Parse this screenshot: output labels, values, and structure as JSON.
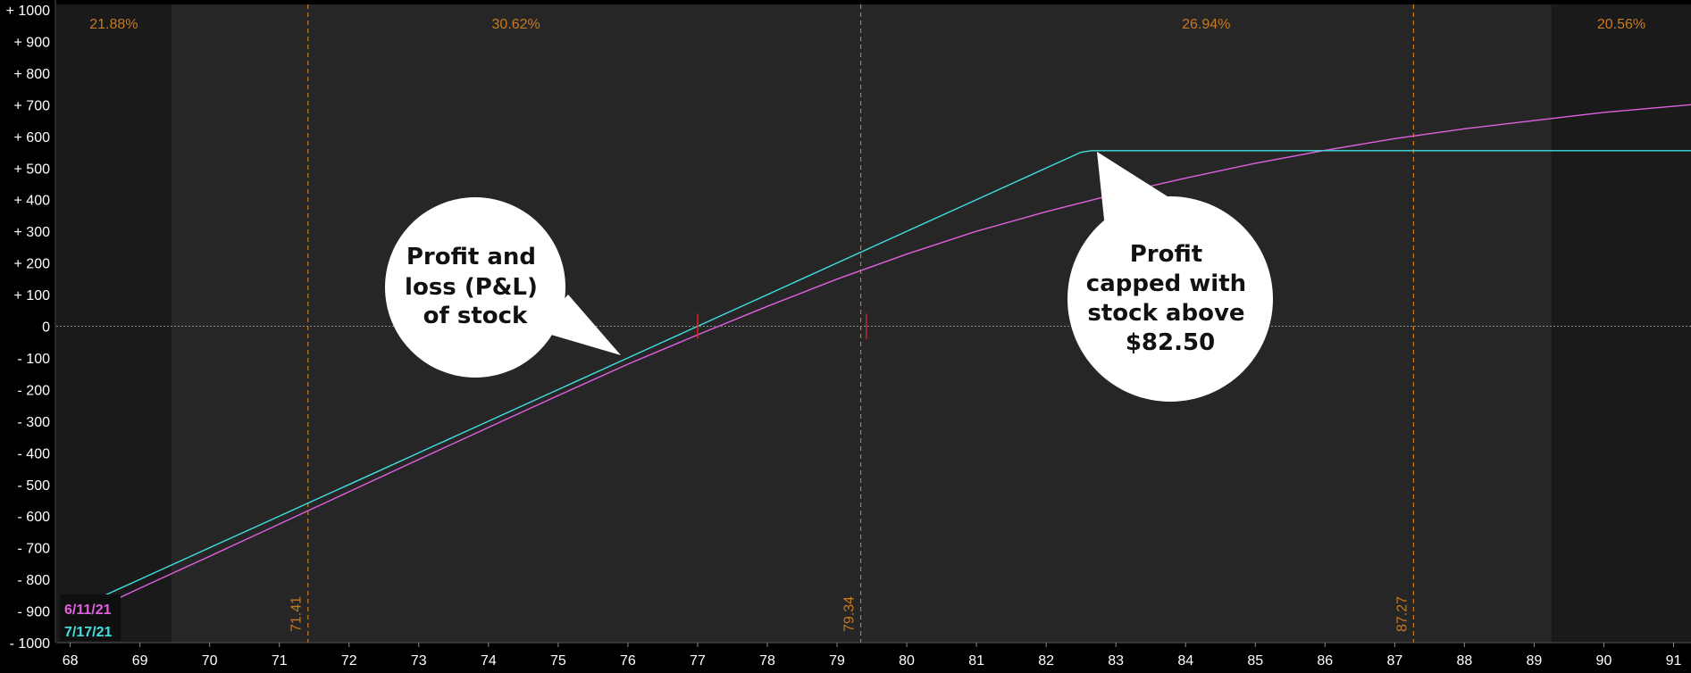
{
  "chart_data": {
    "type": "line",
    "x_ticks": [
      68,
      69,
      70,
      71,
      72,
      73,
      74,
      75,
      76,
      77,
      78,
      79,
      80,
      81,
      82,
      83,
      84,
      85,
      86,
      87,
      88,
      89,
      90,
      91
    ],
    "y_ticks": [
      {
        "value": 1000,
        "label": "+ 1000"
      },
      {
        "value": 900,
        "label": "+ 900"
      },
      {
        "value": 800,
        "label": "+ 800"
      },
      {
        "value": 700,
        "label": "+ 700"
      },
      {
        "value": 600,
        "label": "+ 600"
      },
      {
        "value": 500,
        "label": "+ 500"
      },
      {
        "value": 400,
        "label": "+ 400"
      },
      {
        "value": 300,
        "label": "+ 300"
      },
      {
        "value": 200,
        "label": "+ 200"
      },
      {
        "value": 100,
        "label": "+ 100"
      },
      {
        "value": 0,
        "label": "0"
      },
      {
        "value": -100,
        "label": "- 100"
      },
      {
        "value": -200,
        "label": "- 200"
      },
      {
        "value": -300,
        "label": "- 300"
      },
      {
        "value": -400,
        "label": "- 400"
      },
      {
        "value": -500,
        "label": "- 500"
      },
      {
        "value": -600,
        "label": "- 600"
      },
      {
        "value": -700,
        "label": "- 700"
      },
      {
        "value": -800,
        "label": "- 800"
      },
      {
        "value": -900,
        "label": "- 900"
      },
      {
        "value": -1000,
        "label": "- 1000"
      }
    ],
    "xlim": [
      67.8,
      91.25
    ],
    "ylim": [
      -1000,
      1000
    ],
    "zero_line": true,
    "probability_zones": [
      {
        "from": 67.8,
        "to": 69.45,
        "label": "21.88%"
      },
      {
        "from": 69.45,
        "to": 79.34,
        "label": "30.62%"
      },
      {
        "from": 79.34,
        "to": 89.25,
        "label": "26.94%"
      },
      {
        "from": 89.25,
        "to": 91.25,
        "label": "20.56%"
      }
    ],
    "sigma_lines": [
      {
        "x": 71.41,
        "label": "71.41"
      },
      {
        "x": 79.34,
        "label": "79.34"
      },
      {
        "x": 87.27,
        "label": "87.27"
      }
    ],
    "breakeven_markers": [
      77.0,
      79.42
    ],
    "series": [
      {
        "name": "6/11/21",
        "color": "#e060e0",
        "points": [
          [
            68.3,
            -900
          ],
          [
            69,
            -828
          ],
          [
            70,
            -727
          ],
          [
            71,
            -625
          ],
          [
            72,
            -523
          ],
          [
            73,
            -421
          ],
          [
            74,
            -320
          ],
          [
            75,
            -219
          ],
          [
            76,
            -120
          ],
          [
            77,
            -27
          ],
          [
            78,
            63
          ],
          [
            79,
            149
          ],
          [
            80,
            228
          ],
          [
            81,
            300
          ],
          [
            82,
            362
          ],
          [
            83,
            418
          ],
          [
            84,
            468
          ],
          [
            85,
            515
          ],
          [
            86,
            556
          ],
          [
            87,
            593
          ],
          [
            88,
            624
          ],
          [
            89,
            650
          ],
          [
            90,
            676
          ],
          [
            91.25,
            700
          ]
        ]
      },
      {
        "name": "7/17/21",
        "color": "#40e0e0",
        "points": [
          [
            68.3,
            -870
          ],
          [
            69,
            -800
          ],
          [
            70,
            -700
          ],
          [
            71,
            -600
          ],
          [
            72,
            -500
          ],
          [
            73,
            -400
          ],
          [
            74,
            -300
          ],
          [
            75,
            -200
          ],
          [
            76,
            -100
          ],
          [
            77,
            0
          ],
          [
            78,
            100
          ],
          [
            79,
            200
          ],
          [
            80,
            300
          ],
          [
            81,
            400
          ],
          [
            82,
            500
          ],
          [
            82.5,
            550
          ],
          [
            82.65,
            555
          ],
          [
            91.25,
            555
          ]
        ]
      }
    ],
    "legend": {
      "placement": "bottom-left",
      "items": [
        "6/11/21",
        "7/17/21"
      ]
    },
    "annotations": [
      {
        "lines": [
          "Profit and",
          "loss (P&L)",
          "of stock"
        ]
      },
      {
        "lines": [
          "Profit",
          "capped with",
          "stock above",
          "$82.50"
        ]
      }
    ]
  },
  "colors": {
    "background": "#000000",
    "plot_outer": "#1a1a1a",
    "plot_inner": "#262626",
    "axis_text": "#ffffff",
    "accent_orange": "#c87a1e",
    "breakeven_red": "#e02020",
    "callout_fill": "#ffffff"
  }
}
